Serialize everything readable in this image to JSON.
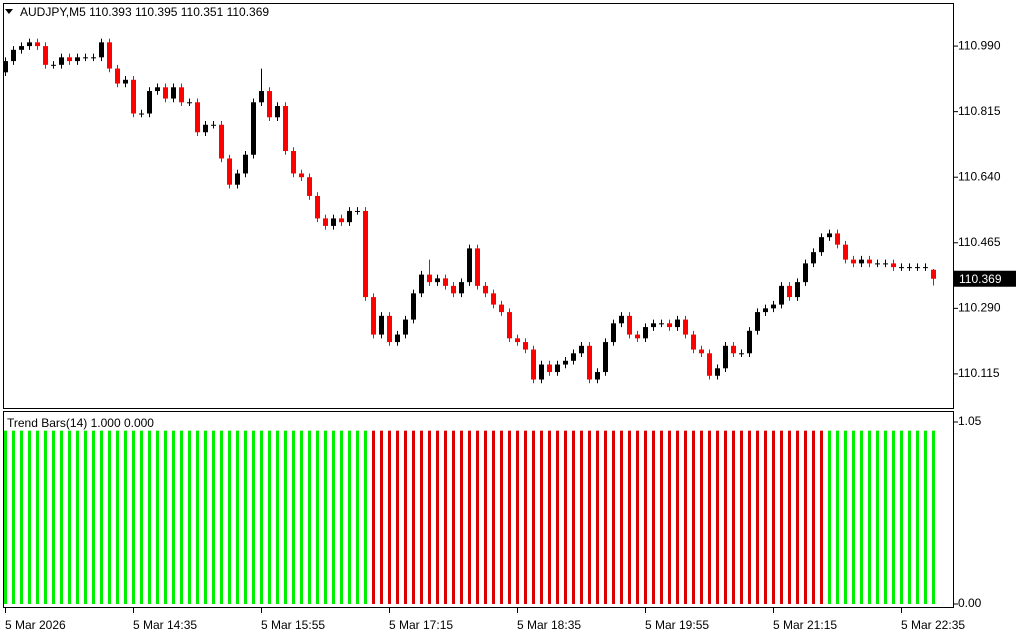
{
  "chart_data": [
    {
      "type": "candlestick",
      "title": "AUDJPY,M5  110.393 110.395 110.351 110.369",
      "current_price": 110.369,
      "categories": [
        "5 Mar 2026",
        null,
        null,
        null,
        null,
        null,
        null,
        null,
        null,
        null,
        null,
        null,
        null,
        null,
        null,
        null,
        "5 Mar 14:35",
        null,
        null,
        null,
        null,
        null,
        null,
        null,
        null,
        null,
        null,
        null,
        null,
        null,
        null,
        null,
        "5 Mar 15:55",
        null,
        null,
        null,
        null,
        null,
        null,
        null,
        null,
        null,
        null,
        null,
        null,
        null,
        null,
        null,
        "5 Mar 17:15",
        null,
        null,
        null,
        null,
        null,
        null,
        null,
        null,
        null,
        null,
        null,
        null,
        null,
        null,
        null,
        "5 Mar 18:35",
        null,
        null,
        null,
        null,
        null,
        null,
        null,
        null,
        null,
        null,
        null,
        null,
        null,
        null,
        null,
        "5 Mar 19:55",
        null,
        null,
        null,
        null,
        null,
        null,
        null,
        null,
        null,
        null,
        null,
        null,
        null,
        null,
        null,
        "5 Mar 21:15",
        null,
        null,
        null,
        null,
        null,
        null,
        null,
        null,
        null,
        null,
        null,
        null,
        null,
        null,
        null,
        "5 Mar 22:35",
        null,
        null,
        null,
        null
      ],
      "open": [
        110.92,
        110.95,
        110.98,
        110.99,
        111.0,
        110.99,
        110.94,
        110.94,
        110.96,
        110.95,
        110.96,
        110.96,
        110.96,
        111.0,
        110.93,
        110.89,
        110.9,
        110.81,
        110.81,
        110.87,
        110.88,
        110.85,
        110.88,
        110.84,
        110.84,
        110.76,
        110.78,
        110.78,
        110.69,
        110.62,
        110.65,
        110.7,
        110.84,
        110.87,
        110.8,
        110.83,
        110.71,
        110.65,
        110.64,
        110.59,
        110.53,
        110.51,
        110.53,
        110.52,
        110.55,
        110.55,
        110.32,
        110.22,
        110.27,
        110.2,
        110.22,
        110.26,
        110.33,
        110.38,
        110.36,
        110.37,
        110.35,
        110.33,
        110.36,
        110.45,
        110.35,
        110.33,
        110.3,
        110.28,
        110.21,
        110.2,
        110.18,
        110.1,
        110.14,
        110.12,
        110.14,
        110.15,
        110.17,
        110.19,
        110.1,
        110.12,
        110.2,
        110.25,
        110.27,
        110.22,
        110.21,
        110.24,
        110.25,
        110.25,
        110.24,
        110.26,
        110.22,
        110.18,
        110.17,
        110.11,
        110.13,
        110.19,
        110.17,
        110.17,
        110.23,
        110.28,
        110.29,
        110.3,
        110.35,
        110.32,
        110.36,
        110.41,
        110.44,
        110.48,
        110.49,
        110.46,
        110.42,
        110.41,
        110.42,
        110.41,
        110.41,
        110.41,
        110.4,
        110.4,
        110.4,
        110.4,
        110.393
      ],
      "high": [
        110.96,
        110.99,
        111.0,
        111.01,
        111.01,
        111.0,
        110.95,
        110.97,
        110.97,
        110.97,
        110.97,
        110.97,
        111.01,
        111.01,
        110.94,
        110.91,
        110.91,
        110.82,
        110.88,
        110.89,
        110.89,
        110.89,
        110.89,
        110.85,
        110.85,
        110.79,
        110.79,
        110.79,
        110.7,
        110.66,
        110.71,
        110.85,
        110.93,
        110.88,
        110.84,
        110.84,
        110.72,
        110.66,
        110.65,
        110.6,
        110.54,
        110.54,
        110.54,
        110.56,
        110.56,
        110.56,
        110.33,
        110.28,
        110.28,
        110.23,
        110.27,
        110.34,
        110.39,
        110.42,
        110.38,
        110.38,
        110.36,
        110.37,
        110.46,
        110.46,
        110.36,
        110.34,
        110.31,
        110.29,
        110.22,
        110.21,
        110.19,
        110.15,
        110.15,
        110.15,
        110.16,
        110.18,
        110.2,
        110.2,
        110.13,
        110.21,
        110.26,
        110.28,
        110.28,
        110.23,
        110.25,
        110.26,
        110.26,
        110.26,
        110.27,
        110.27,
        110.23,
        110.19,
        110.18,
        110.14,
        110.2,
        110.2,
        110.18,
        110.24,
        110.29,
        110.3,
        110.31,
        110.36,
        110.36,
        110.37,
        110.42,
        110.45,
        110.49,
        110.5,
        110.5,
        110.47,
        110.43,
        110.43,
        110.43,
        110.42,
        110.42,
        110.42,
        110.41,
        110.41,
        110.41,
        110.41,
        110.395
      ],
      "low": [
        110.91,
        110.94,
        110.97,
        110.98,
        110.98,
        110.93,
        110.93,
        110.93,
        110.94,
        110.94,
        110.95,
        110.95,
        110.95,
        110.92,
        110.88,
        110.88,
        110.8,
        110.8,
        110.8,
        110.86,
        110.84,
        110.84,
        110.83,
        110.83,
        110.75,
        110.75,
        110.77,
        110.68,
        110.61,
        110.61,
        110.64,
        110.69,
        110.83,
        110.79,
        110.79,
        110.7,
        110.64,
        110.63,
        110.58,
        110.52,
        110.5,
        110.5,
        110.51,
        110.51,
        110.54,
        110.31,
        110.21,
        110.21,
        110.19,
        110.19,
        110.21,
        110.25,
        110.32,
        110.35,
        110.35,
        110.34,
        110.32,
        110.32,
        110.35,
        110.34,
        110.32,
        110.29,
        110.27,
        110.2,
        110.19,
        110.17,
        110.09,
        110.09,
        110.11,
        110.11,
        110.13,
        110.14,
        110.16,
        110.09,
        110.09,
        110.11,
        110.19,
        110.24,
        110.21,
        110.2,
        110.2,
        110.23,
        110.24,
        110.23,
        110.23,
        110.21,
        110.17,
        110.16,
        110.1,
        110.1,
        110.12,
        110.16,
        110.16,
        110.16,
        110.22,
        110.27,
        110.28,
        110.29,
        110.31,
        110.31,
        110.35,
        110.4,
        110.43,
        110.47,
        110.45,
        110.41,
        110.4,
        110.4,
        110.4,
        110.4,
        110.4,
        110.39,
        110.39,
        110.39,
        110.39,
        110.39,
        110.351
      ],
      "close": [
        110.95,
        110.98,
        110.99,
        111.0,
        110.99,
        110.94,
        110.94,
        110.96,
        110.95,
        110.96,
        110.96,
        110.96,
        111.0,
        110.93,
        110.89,
        110.9,
        110.81,
        110.81,
        110.87,
        110.88,
        110.85,
        110.88,
        110.84,
        110.84,
        110.76,
        110.78,
        110.78,
        110.69,
        110.62,
        110.65,
        110.7,
        110.84,
        110.87,
        110.8,
        110.83,
        110.71,
        110.65,
        110.64,
        110.59,
        110.53,
        110.51,
        110.53,
        110.52,
        110.55,
        110.55,
        110.32,
        110.22,
        110.27,
        110.2,
        110.22,
        110.26,
        110.33,
        110.38,
        110.36,
        110.37,
        110.35,
        110.33,
        110.36,
        110.45,
        110.35,
        110.33,
        110.3,
        110.28,
        110.21,
        110.2,
        110.18,
        110.1,
        110.14,
        110.12,
        110.14,
        110.15,
        110.17,
        110.19,
        110.1,
        110.12,
        110.2,
        110.25,
        110.27,
        110.22,
        110.21,
        110.24,
        110.25,
        110.25,
        110.24,
        110.26,
        110.22,
        110.18,
        110.17,
        110.11,
        110.13,
        110.19,
        110.17,
        110.17,
        110.23,
        110.28,
        110.29,
        110.3,
        110.35,
        110.32,
        110.36,
        110.41,
        110.44,
        110.48,
        110.49,
        110.46,
        110.42,
        110.41,
        110.42,
        110.41,
        110.41,
        110.41,
        110.4,
        110.4,
        110.4,
        110.4,
        110.4,
        110.369
      ],
      "up_color": "#000000",
      "down_color": "#ff0000",
      "ylim": [
        110.024,
        111.105
      ],
      "yticks": [
        {
          "value": 110.99,
          "label": "110.990"
        },
        110.815,
        {
          "value": 110.64,
          "label": "110.640"
        },
        110.465,
        {
          "value": 110.29,
          "label": "110.290"
        },
        110.115
      ]
    },
    {
      "type": "bar",
      "title": "Trend Bars(14) 1.000 0.000",
      "series": [
        {
          "color": "#00ee00",
          "values": [
            1,
            1,
            1,
            1,
            1,
            1,
            1,
            1,
            1,
            1,
            1,
            1,
            1,
            1,
            1,
            1,
            1,
            1,
            1,
            1,
            1,
            1,
            1,
            1,
            1,
            1,
            1,
            1,
            1,
            1,
            1,
            1,
            1,
            1,
            1,
            1,
            1,
            1,
            1,
            1,
            1,
            1,
            1,
            1,
            1,
            1,
            0,
            0,
            0,
            0,
            0,
            0,
            0,
            0,
            0,
            0,
            0,
            0,
            0,
            0,
            0,
            0,
            0,
            0,
            0,
            0,
            0,
            0,
            0,
            0,
            0,
            0,
            0,
            0,
            0,
            0,
            0,
            0,
            0,
            0,
            0,
            0,
            0,
            0,
            0,
            0,
            0,
            0,
            0,
            0,
            0,
            0,
            0,
            0,
            0,
            0,
            0,
            0,
            0,
            0,
            0,
            0,
            0,
            1,
            1,
            1,
            1,
            1,
            1,
            1,
            1,
            1,
            1,
            1,
            1,
            1,
            1
          ]
        },
        {
          "color": "#dd0000",
          "values": [
            0,
            0,
            0,
            0,
            0,
            0,
            0,
            0,
            0,
            0,
            0,
            0,
            0,
            0,
            0,
            0,
            0,
            0,
            0,
            0,
            0,
            0,
            0,
            0,
            0,
            0,
            0,
            0,
            0,
            0,
            0,
            0,
            0,
            0,
            0,
            0,
            0,
            0,
            0,
            0,
            0,
            0,
            0,
            0,
            0,
            0,
            1,
            1,
            1,
            1,
            1,
            1,
            1,
            1,
            1,
            1,
            1,
            1,
            1,
            1,
            1,
            1,
            1,
            1,
            1,
            1,
            1,
            1,
            1,
            1,
            1,
            1,
            1,
            1,
            1,
            1,
            1,
            1,
            1,
            1,
            1,
            1,
            1,
            1,
            1,
            1,
            1,
            1,
            1,
            1,
            1,
            1,
            1,
            1,
            1,
            1,
            1,
            1,
            1,
            1,
            1,
            1,
            1,
            0,
            0,
            0,
            0,
            0,
            0,
            0,
            0,
            0,
            0,
            0,
            0,
            0,
            0
          ]
        }
      ],
      "ylim": [
        0,
        1.05
      ],
      "yticks": [
        1.05,
        {
          "value": 0,
          "label": "0.00"
        }
      ]
    }
  ]
}
